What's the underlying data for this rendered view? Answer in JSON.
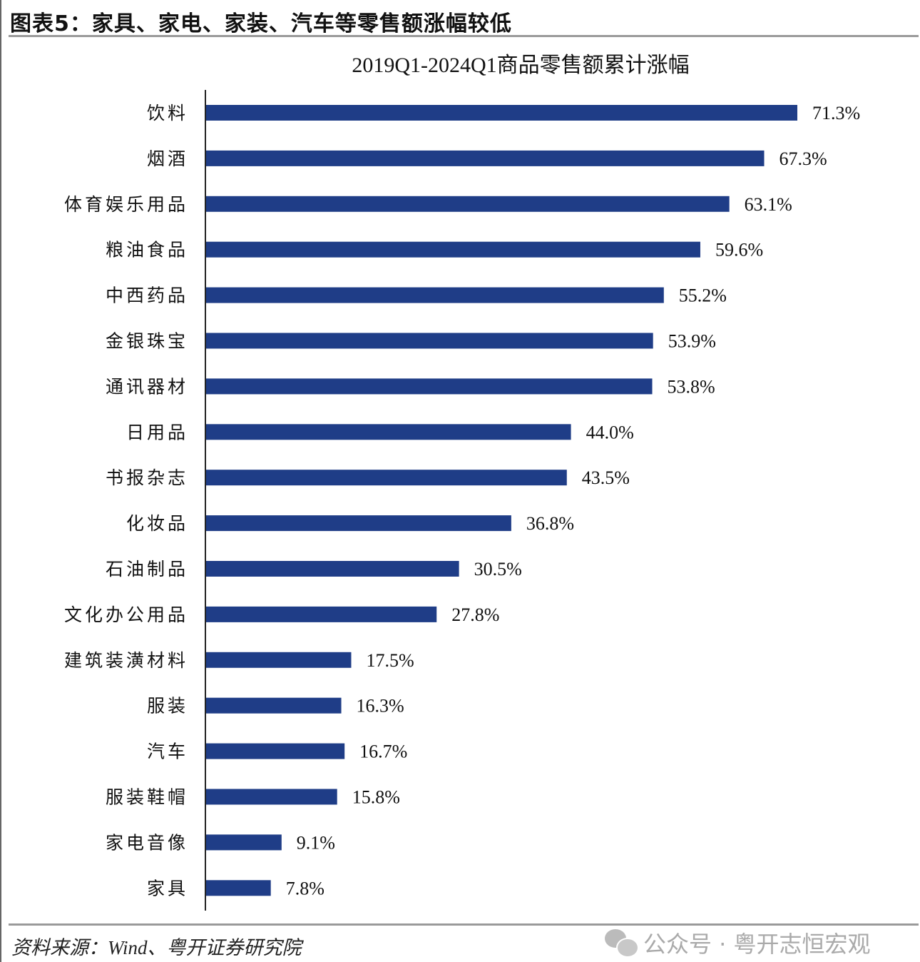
{
  "figure_title": "图表5：家具、家电、家装、汽车等零售额涨幅较低",
  "source": "资料来源：Wind、粤开证券研究院",
  "watermark": "公众号 · 粤开志恒宏观",
  "watermark_icon": "wechat-icon",
  "colors": {
    "bar": "#1f3d87",
    "text": "#111111"
  },
  "chart_data": {
    "type": "bar",
    "orientation": "horizontal",
    "title": "2019Q1-2024Q1商品零售额累计涨幅",
    "categories": [
      "饮料",
      "烟酒",
      "体育娱乐用品",
      "粮油食品",
      "中西药品",
      "金银珠宝",
      "通讯器材",
      "日用品",
      "书报杂志",
      "化妆品",
      "石油制品",
      "文化办公用品",
      "建筑装潢材料",
      "服装",
      "汽车",
      "服装鞋帽",
      "家电音像",
      "家具"
    ],
    "values": [
      71.3,
      67.3,
      63.1,
      59.6,
      55.2,
      53.9,
      53.8,
      44.0,
      43.5,
      36.8,
      30.5,
      27.8,
      17.5,
      16.3,
      16.7,
      15.8,
      9.1,
      7.8
    ],
    "labels": [
      "71.3%",
      "67.3%",
      "63.1%",
      "59.6%",
      "55.2%",
      "53.9%",
      "53.8%",
      "44.0%",
      "43.5%",
      "36.8%",
      "30.5%",
      "27.8%",
      "17.5%",
      "16.3%",
      "16.7%",
      "15.8%",
      "9.1%",
      "7.8%"
    ],
    "unit": "%",
    "xlim": [
      0,
      100
    ],
    "grid": false,
    "legend": "none"
  }
}
